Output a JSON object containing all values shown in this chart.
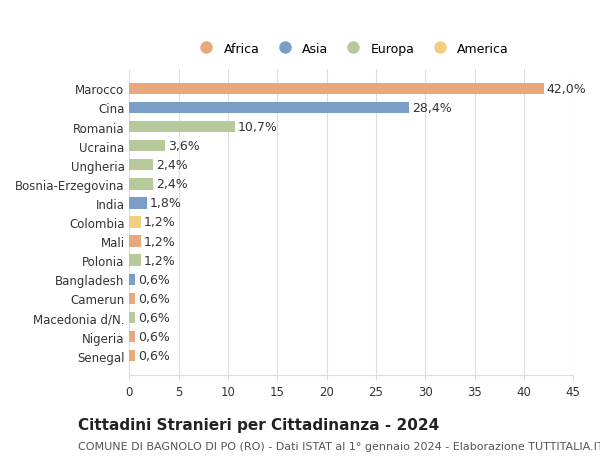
{
  "title": "Cittadini Stranieri per Cittadinanza - 2024",
  "subtitle": "COMUNE DI BAGNOLO DI PO (RO) - Dati ISTAT al 1° gennaio 2024 - Elaborazione TUTTITALIA.IT",
  "categories": [
    "Marocco",
    "Cina",
    "Romania",
    "Ucraina",
    "Ungheria",
    "Bosnia-Erzegovina",
    "India",
    "Colombia",
    "Mali",
    "Polonia",
    "Bangladesh",
    "Camerun",
    "Macedonia d/N.",
    "Nigeria",
    "Senegal"
  ],
  "values": [
    42.0,
    28.4,
    10.7,
    3.6,
    2.4,
    2.4,
    1.8,
    1.2,
    1.2,
    1.2,
    0.6,
    0.6,
    0.6,
    0.6,
    0.6
  ],
  "continents": [
    "Africa",
    "Asia",
    "Europa",
    "Europa",
    "Europa",
    "Europa",
    "Asia",
    "America",
    "Africa",
    "Europa",
    "Asia",
    "Africa",
    "Europa",
    "Africa",
    "Africa"
  ],
  "colors": {
    "Africa": "#E8A87C",
    "Asia": "#7B9EC9",
    "Europa": "#B5C99A",
    "America": "#F0D080"
  },
  "legend_order": [
    "Africa",
    "Asia",
    "Europa",
    "America"
  ],
  "xlim": [
    0,
    45
  ],
  "xticks": [
    0,
    5,
    10,
    15,
    20,
    25,
    30,
    35,
    40,
    45
  ],
  "background_color": "#ffffff",
  "grid_color": "#dddddd",
  "bar_height": 0.6,
  "label_fontsize": 9,
  "title_fontsize": 11,
  "subtitle_fontsize": 8,
  "tick_fontsize": 8.5
}
